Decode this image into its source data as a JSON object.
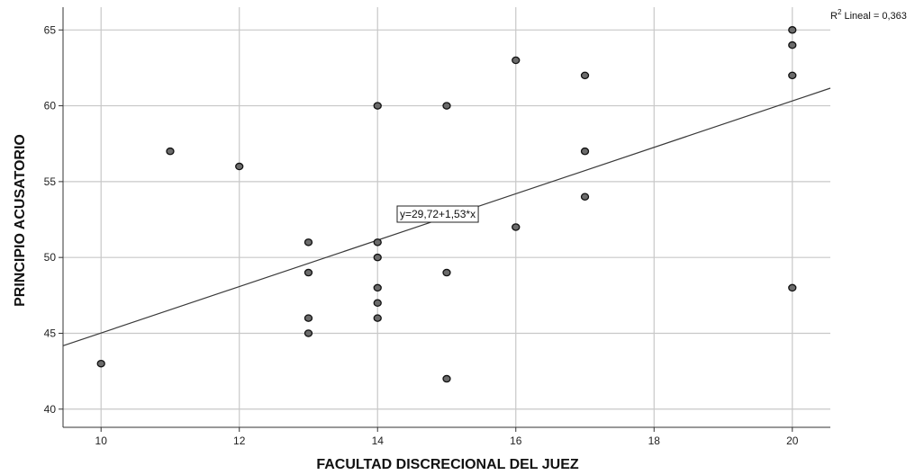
{
  "chart_data": {
    "type": "scatter",
    "xlabel": "FACULTAD DISCRECIONAL DEL JUEZ",
    "ylabel": "PRINCIPIO ACUSATORIO",
    "xlim": [
      9.45,
      20.55
    ],
    "ylim": [
      38.8,
      66.5
    ],
    "xticks": [
      10,
      12,
      14,
      16,
      18,
      20
    ],
    "yticks": [
      40,
      45,
      50,
      55,
      60,
      65
    ],
    "grid": true,
    "points": [
      {
        "x": 10,
        "y": 43
      },
      {
        "x": 11,
        "y": 57
      },
      {
        "x": 12,
        "y": 56
      },
      {
        "x": 13,
        "y": 51
      },
      {
        "x": 13,
        "y": 49
      },
      {
        "x": 13,
        "y": 46
      },
      {
        "x": 13,
        "y": 45
      },
      {
        "x": 14,
        "y": 60
      },
      {
        "x": 14,
        "y": 51
      },
      {
        "x": 14,
        "y": 50
      },
      {
        "x": 14,
        "y": 48
      },
      {
        "x": 14,
        "y": 47
      },
      {
        "x": 14,
        "y": 46
      },
      {
        "x": 15,
        "y": 60
      },
      {
        "x": 15,
        "y": 49
      },
      {
        "x": 15,
        "y": 42
      },
      {
        "x": 16,
        "y": 63
      },
      {
        "x": 16,
        "y": 52
      },
      {
        "x": 17,
        "y": 62
      },
      {
        "x": 17,
        "y": 57
      },
      {
        "x": 17,
        "y": 54
      },
      {
        "x": 20,
        "y": 65
      },
      {
        "x": 20,
        "y": 64
      },
      {
        "x": 20,
        "y": 62
      },
      {
        "x": 20,
        "y": 48
      }
    ],
    "fit_line": {
      "intercept": 29.72,
      "slope": 1.53
    },
    "fit_equation": "y=29,72+1,53*x",
    "r2_prefix": "R",
    "r2_superscript": "2",
    "r2_suffix": " Lineal = 0,363"
  }
}
